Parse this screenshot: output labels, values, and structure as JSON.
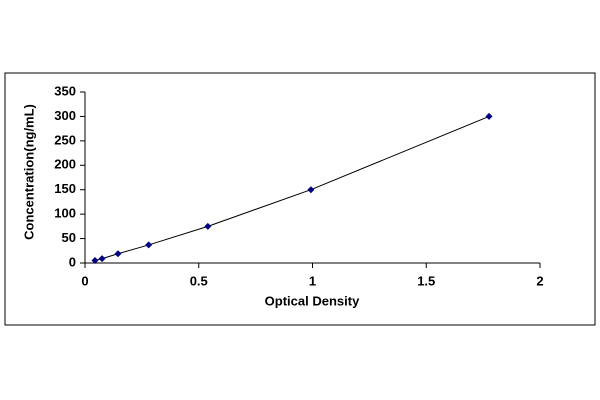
{
  "chart_data": {
    "type": "line",
    "x_label": "Optical Density",
    "y_label": "Concentration(ng/mL)",
    "x": [
      0.044,
      0.075,
      0.145,
      0.28,
      0.54,
      0.993,
      1.776
    ],
    "series": [
      {
        "color": "#000080",
        "values": [
          5,
          9,
          19,
          37,
          75,
          150,
          300
        ]
      }
    ],
    "xlim": [
      0,
      2
    ],
    "xticks": [
      0,
      0.5,
      1,
      1.5,
      2
    ],
    "ylim": [
      0,
      350
    ],
    "yticks": [
      0,
      50,
      100,
      150,
      200,
      250,
      300,
      350
    ],
    "grid": false
  }
}
